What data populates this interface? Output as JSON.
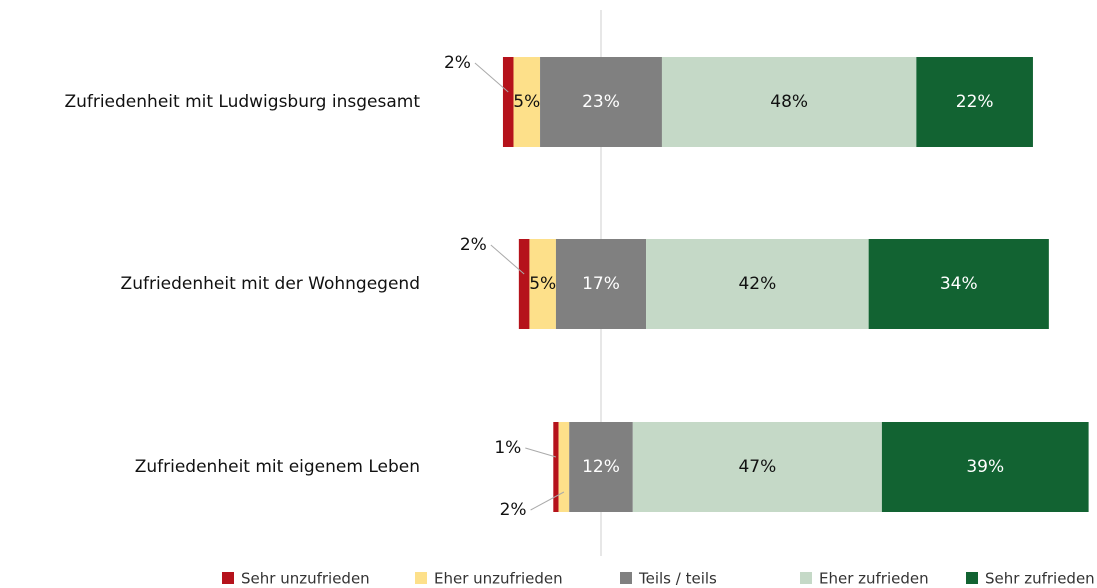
{
  "chart_data": {
    "type": "diverging_stacked_bar",
    "categories": [
      "Zufriedenheit mit Ludwigsburg insgesamt",
      "Zufriedenheit mit der Wohngegend",
      "Zufriedenheit mit eigenem Leben"
    ],
    "series": [
      {
        "name": "Sehr unzufrieden",
        "color": "#b5121b",
        "label_color": "#111111",
        "values": [
          2,
          2,
          1
        ]
      },
      {
        "name": "Eher unzufrieden",
        "color": "#fde08a",
        "label_color": "#111111",
        "values": [
          5,
          5,
          2
        ]
      },
      {
        "name": "Teils / teils",
        "color": "#808080",
        "label_color": "#ffffff",
        "values": [
          23,
          17,
          12
        ]
      },
      {
        "name": "Eher zufrieden",
        "color": "#c5d9c7",
        "label_color": "#111111",
        "values": [
          48,
          42,
          47
        ]
      },
      {
        "name": "Sehr zufrieden",
        "color": "#126332",
        "label_color": "#ffffff",
        "values": [
          22,
          34,
          39
        ]
      }
    ],
    "value_labels": [
      [
        "2%",
        "2%",
        "1%"
      ],
      [
        "5%",
        "5%",
        "2%"
      ],
      [
        "23%",
        "17%",
        "12%"
      ],
      [
        "48%",
        "42%",
        "47%"
      ],
      [
        "22%",
        "34%",
        "39%"
      ]
    ],
    "neutral_series": 2
  }
}
